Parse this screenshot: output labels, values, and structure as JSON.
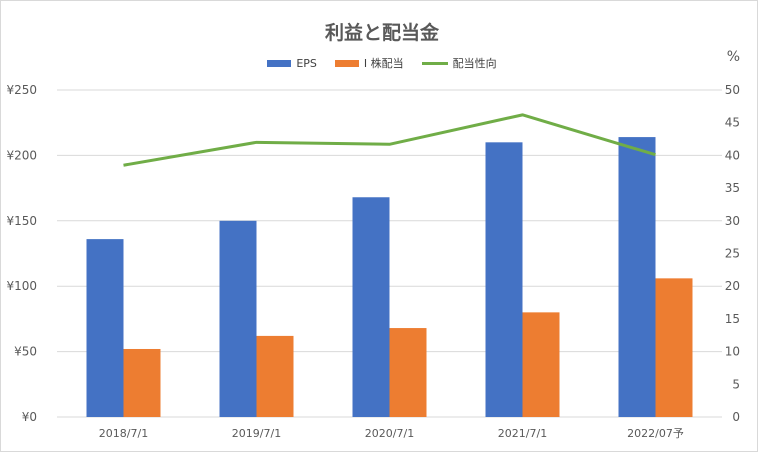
{
  "chart_data": {
    "type": "bar",
    "title": "利益と配当金",
    "categories": [
      "2018/7/1",
      "2019/7/1",
      "2020/7/1",
      "2021/7/1",
      "2022/07予"
    ],
    "series": [
      {
        "name": "EPS",
        "type": "bar",
        "axis": "left",
        "color": "#4472c4",
        "values": [
          136,
          150,
          168,
          210,
          214
        ]
      },
      {
        "name": "I 株配当",
        "type": "bar",
        "axis": "left",
        "color": "#ed7d31",
        "values": [
          52,
          62,
          68,
          80,
          106
        ]
      },
      {
        "name": "配当性向",
        "type": "line",
        "axis": "right",
        "color": "#70ad47",
        "values": [
          38.5,
          42,
          41.7,
          46.2,
          40.1
        ]
      }
    ],
    "y_left": {
      "ylim": [
        0,
        250
      ],
      "ticks": [
        0,
        50,
        100,
        150,
        200,
        250
      ],
      "tick_labels": [
        "¥0",
        "¥50",
        "¥100",
        "¥150",
        "¥200",
        "¥250"
      ]
    },
    "y_right": {
      "label": "%",
      "ylim": [
        0,
        50
      ],
      "ticks": [
        0,
        5,
        10,
        15,
        20,
        25,
        30,
        35,
        40,
        45,
        50
      ],
      "tick_labels": [
        "0",
        "5",
        "10",
        "15",
        "20",
        "25",
        "30",
        "35",
        "40",
        "45",
        "50"
      ]
    },
    "grid": true,
    "legend_position": "top"
  }
}
